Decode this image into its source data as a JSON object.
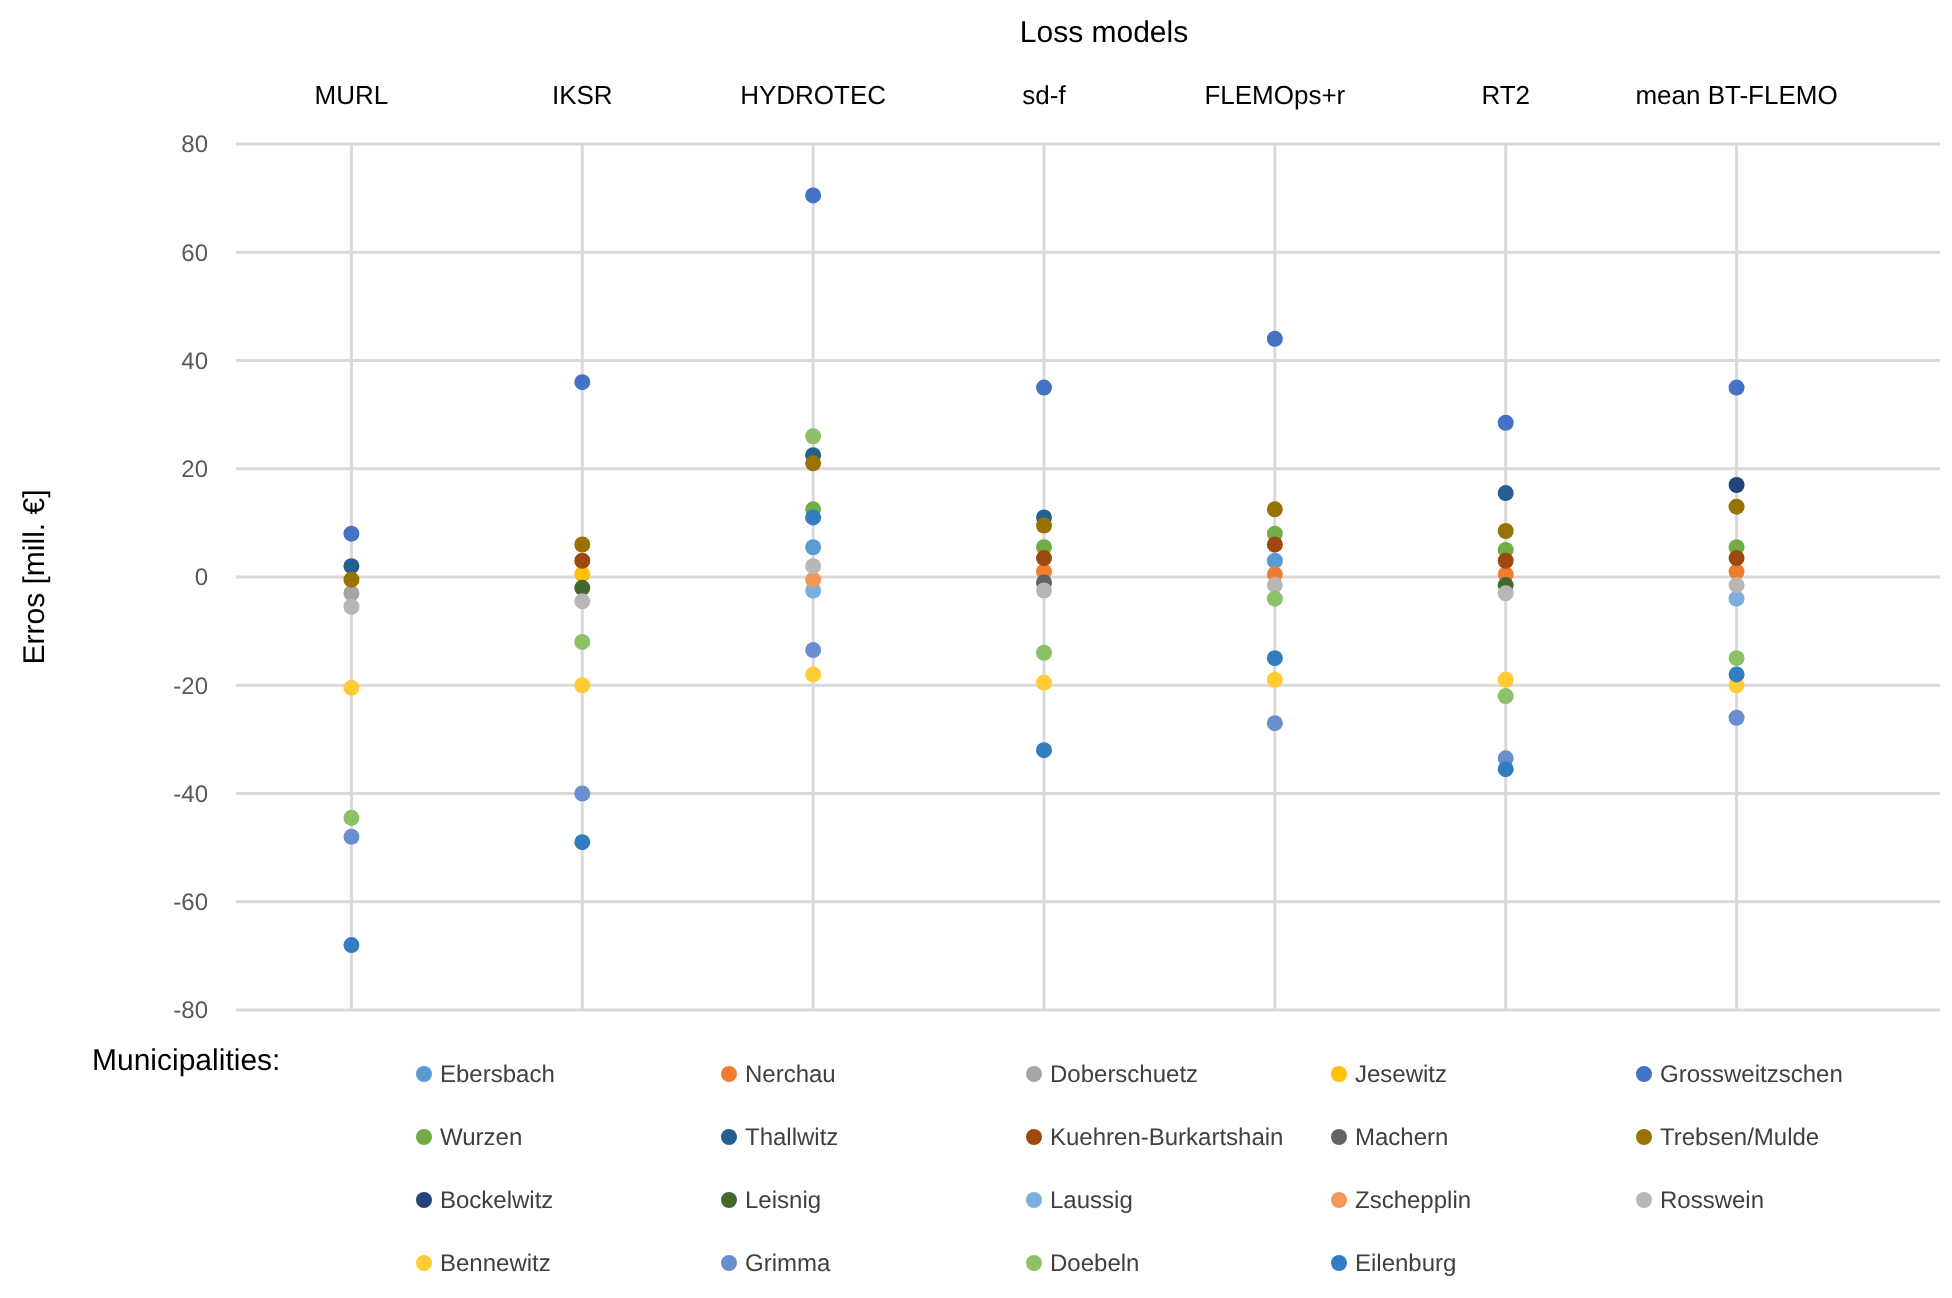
{
  "chart_data": {
    "type": "scatter",
    "xlabel": "Loss models",
    "ylabel": "Erros [mill. €]",
    "legend_title": "Municipalities:",
    "legend": "bottom",
    "grid": true,
    "marker": "circle",
    "categories": [
      "MURL",
      "IKSR",
      "HYDROTEC",
      "sd-f",
      "FLEMOps+r",
      "RT2",
      "mean BT-FLEMO"
    ],
    "ylim": [
      -80,
      80
    ],
    "yticks": [
      -80,
      -60,
      -40,
      -20,
      0,
      20,
      40,
      60,
      80
    ],
    "series": [
      {
        "name": "Ebersbach",
        "color": "#5b9bd5",
        "values": [
          null,
          null,
          5.5,
          null,
          3,
          null,
          null
        ]
      },
      {
        "name": "Nerchau",
        "color": "#ed7d31",
        "values": [
          null,
          null,
          null,
          1,
          0.5,
          0.5,
          1
        ]
      },
      {
        "name": "Doberschuetz",
        "color": "#a5a5a5",
        "values": [
          -3,
          null,
          null,
          null,
          null,
          null,
          null
        ]
      },
      {
        "name": "Jesewitz",
        "color": "#ffc000",
        "values": [
          null,
          0.5,
          null,
          null,
          null,
          null,
          null
        ]
      },
      {
        "name": "Grossweitzschen",
        "color": "#4472c4",
        "values": [
          8,
          36,
          70.5,
          35,
          44,
          28.5,
          35
        ]
      },
      {
        "name": "Wurzen",
        "color": "#70ad47",
        "values": [
          null,
          null,
          12.5,
          5.5,
          8,
          5,
          5.5
        ]
      },
      {
        "name": "Thallwitz",
        "color": "#255e91",
        "values": [
          2,
          null,
          22.5,
          11,
          null,
          15.5,
          null
        ]
      },
      {
        "name": "Kuehren-Burkartshain",
        "color": "#9e480e",
        "values": [
          null,
          3,
          null,
          3.5,
          6,
          3,
          3.5
        ]
      },
      {
        "name": "Machern",
        "color": "#636363",
        "values": [
          null,
          null,
          null,
          -1,
          null,
          null,
          null
        ]
      },
      {
        "name": "Trebsen/Mulde",
        "color": "#997300",
        "values": [
          -0.5,
          6,
          21,
          9.5,
          12.5,
          8.5,
          13
        ]
      },
      {
        "name": "Bockelwitz",
        "color": "#264478",
        "values": [
          null,
          null,
          null,
          null,
          null,
          null,
          17
        ]
      },
      {
        "name": "Leisnig",
        "color": "#43682b",
        "values": [
          null,
          -2,
          null,
          null,
          null,
          -1.5,
          null
        ]
      },
      {
        "name": "Laussig",
        "color": "#7cafdd",
        "values": [
          null,
          null,
          -2.5,
          null,
          null,
          null,
          -4
        ]
      },
      {
        "name": "Zschepplin",
        "color": "#f1975a",
        "values": [
          null,
          null,
          -0.5,
          null,
          null,
          null,
          null
        ]
      },
      {
        "name": "Rosswein",
        "color": "#b7b7b7",
        "values": [
          -5.5,
          -4.5,
          2,
          -2.5,
          -1.5,
          -3,
          -1.5
        ]
      },
      {
        "name": "Bennewitz",
        "color": "#ffcd33",
        "values": [
          -20.5,
          -20,
          -18,
          -19.5,
          -19,
          -19,
          -20
        ]
      },
      {
        "name": "Grimma",
        "color": "#698ed0",
        "values": [
          -48,
          -40,
          -13.5,
          null,
          -27,
          -33.5,
          -26
        ]
      },
      {
        "name": "Doebeln",
        "color": "#8cc168",
        "values": [
          -44.5,
          -12,
          26,
          -14,
          -4,
          -22,
          -15
        ]
      },
      {
        "name": "Eilenburg",
        "color": "#327dc2",
        "values": [
          -68,
          -49,
          11,
          -32,
          -15,
          -35.5,
          -18
        ]
      }
    ]
  }
}
